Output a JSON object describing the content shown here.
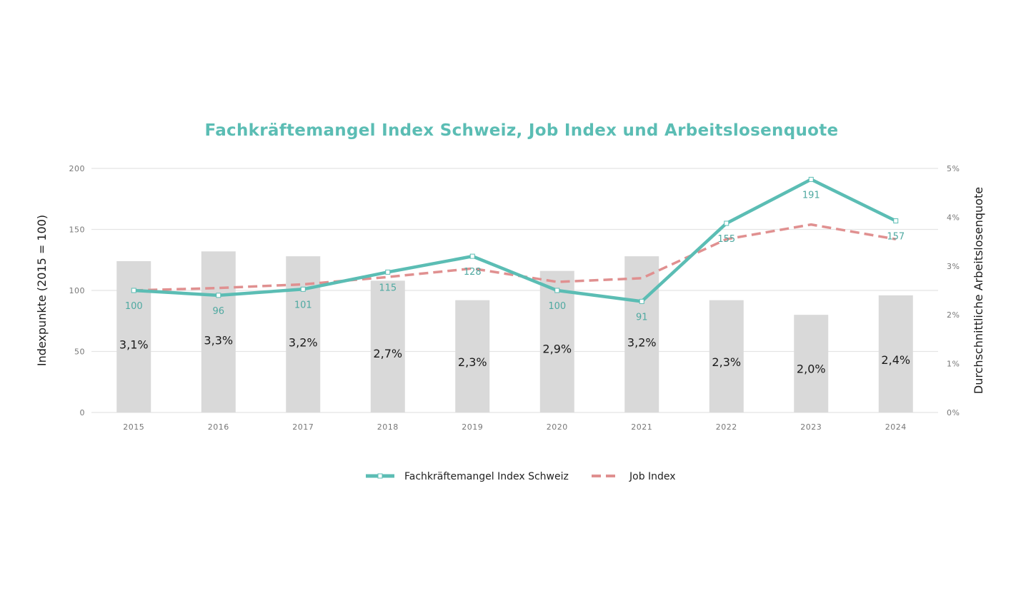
{
  "chart_data": {
    "type": "bar",
    "title": "Fachkräftemangel Index Schweiz, Job Index und Arbeitslosenquote",
    "ylabel": "Indexpunkte (2015 = 100)",
    "y2label": "Durchschnittliche Arbeitslosenquote",
    "ylim": [
      0,
      200
    ],
    "y2lim": [
      0,
      5
    ],
    "y_ticks": [
      "0",
      "50",
      "100",
      "150",
      "200"
    ],
    "y2_ticks": [
      "0%",
      "1%",
      "2%",
      "3%",
      "4%",
      "5%"
    ],
    "grid": true,
    "legend_position": "bottom",
    "categories": [
      "2015",
      "2016",
      "2017",
      "2018",
      "2019",
      "2020",
      "2021",
      "2022",
      "2023",
      "2024"
    ],
    "bars": {
      "axis": "right",
      "color": "#d9d9d9",
      "values": [
        3.1,
        3.3,
        3.2,
        2.7,
        2.3,
        2.9,
        3.2,
        2.3,
        2.0,
        2.4
      ],
      "labels": [
        "3,1%",
        "3,3%",
        "3,2%",
        "2,7%",
        "2,3%",
        "2,9%",
        "3,2%",
        "2,3%",
        "2,0%",
        "2,4%"
      ]
    },
    "series": [
      {
        "name": "Fachkräftemangel Index Schweiz",
        "type": "line",
        "color": "#5bbdb4",
        "values": [
          100,
          96,
          101,
          115,
          128,
          100,
          91,
          155,
          191,
          157
        ],
        "labels": [
          "100",
          "96",
          "101",
          "115",
          "128",
          "100",
          "91",
          "155",
          "191",
          "157"
        ]
      },
      {
        "name": "Job Index",
        "type": "line",
        "style": "dashed",
        "color": "#e09090",
        "values": [
          100,
          102,
          105,
          111,
          118,
          107,
          110,
          142,
          154,
          142
        ]
      }
    ]
  }
}
